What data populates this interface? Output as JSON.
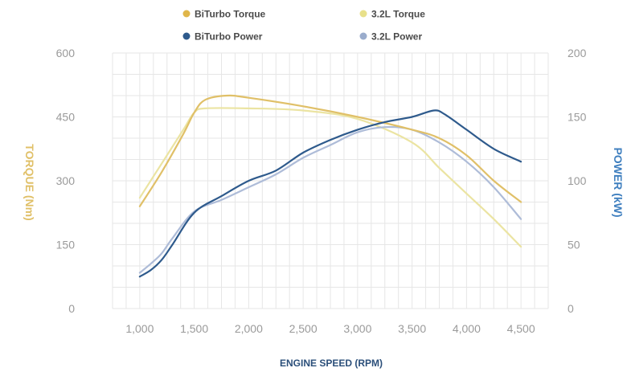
{
  "chart_data": {
    "type": "line",
    "xlabel": "ENGINE SPEED (RPM)",
    "ylabel_left": "TORQUE (Nm)",
    "ylabel_right": "POWER (kW)",
    "x_ticks": [
      "1,000",
      "1,500",
      "2,000",
      "2,500",
      "3,000",
      "3,500",
      "4,000",
      "4,500"
    ],
    "x_tick_values": [
      1000,
      1500,
      2000,
      2500,
      3000,
      3500,
      4000,
      4500
    ],
    "y_left_ticks": [
      "600",
      "450",
      "300",
      "150",
      "0"
    ],
    "y_left_tick_values": [
      600,
      450,
      300,
      150,
      0
    ],
    "y_right_ticks": [
      "200",
      "150",
      "100",
      "50",
      "0"
    ],
    "y_right_tick_values": [
      200,
      150,
      100,
      50,
      0
    ],
    "xlim": [
      750,
      4750
    ],
    "ylim_left": [
      0,
      600
    ],
    "ylim_right": [
      0,
      200
    ],
    "grid": true,
    "legend_position": "top-center",
    "series": [
      {
        "name": "BiTurbo Torque",
        "axis": "left",
        "color": "#e0c068",
        "legend_color": "#e0b64a",
        "x": [
          1000,
          1200,
          1400,
          1500,
          1600,
          1800,
          2000,
          2500,
          3000,
          3500,
          3750,
          4000,
          4250,
          4500
        ],
        "y": [
          240,
          320,
          410,
          460,
          490,
          500,
          495,
          475,
          450,
          420,
          400,
          360,
          300,
          250
        ]
      },
      {
        "name": "3.2L Torque",
        "axis": "left",
        "color": "#ebe4a2",
        "legend_color": "#e8e08a",
        "x": [
          1000,
          1200,
          1400,
          1500,
          1600,
          2000,
          2500,
          3000,
          3500,
          3750,
          4000,
          4250,
          4500
        ],
        "y": [
          260,
          340,
          420,
          460,
          470,
          470,
          465,
          445,
          390,
          330,
          270,
          210,
          145
        ]
      },
      {
        "name": "BiTurbo Power",
        "axis": "right",
        "color": "#2e5a8c",
        "legend_color": "#2e5a8c",
        "x": [
          1000,
          1100,
          1200,
          1300,
          1500,
          1750,
          2000,
          2250,
          2500,
          2750,
          3000,
          3250,
          3500,
          3700,
          3800,
          4000,
          4250,
          4500
        ],
        "y": [
          25,
          30,
          38,
          50,
          75,
          88,
          100,
          108,
          122,
          132,
          140,
          146,
          150,
          155,
          152,
          140,
          125,
          115
        ]
      },
      {
        "name": "3.2L Power",
        "axis": "right",
        "color": "#aebcd8",
        "legend_color": "#9aaccc",
        "x": [
          1000,
          1100,
          1200,
          1300,
          1500,
          1750,
          2000,
          2250,
          2500,
          2750,
          3000,
          3250,
          3500,
          3750,
          4000,
          4250,
          4500
        ],
        "y": [
          28,
          35,
          43,
          55,
          76,
          85,
          95,
          105,
          118,
          128,
          138,
          142,
          140,
          130,
          115,
          95,
          70
        ]
      }
    ]
  },
  "colors": {
    "left_axis_title": "#e0c068",
    "right_axis_title": "#3f7fbf",
    "grid": "#e6e6e6",
    "tick": "#9a9a9a"
  }
}
